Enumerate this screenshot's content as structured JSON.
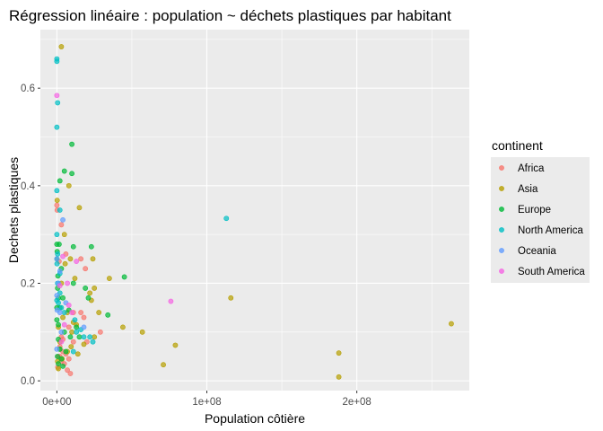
{
  "chart_data": {
    "type": "scatter",
    "title": "Régression linéaire : population ~ déchets plastiques par habitant",
    "xlabel": "Population côtière",
    "ylabel": "Dechets plastiques",
    "xlim": [
      -11000000,
      275000000
    ],
    "ylim": [
      -0.02,
      0.72
    ],
    "x_ticks": [
      0,
      100000000,
      200000000
    ],
    "x_tick_labels": [
      "0e+00",
      "1e+08",
      "2e+08"
    ],
    "y_ticks": [
      0.0,
      0.2,
      0.4,
      0.6
    ],
    "y_tick_labels": [
      "0.0",
      "0.2",
      "0.4",
      "0.6"
    ],
    "grid": true,
    "legend": {
      "title": "continent",
      "position": "right"
    },
    "series": [
      {
        "name": "Africa",
        "color": "#F8766D",
        "points": [
          [
            0,
            0.36
          ],
          [
            200000,
            0.35
          ],
          [
            3000000,
            0.32
          ],
          [
            6000000,
            0.26
          ],
          [
            16000000,
            0.25
          ],
          [
            19000000,
            0.23
          ],
          [
            11000000,
            0.14
          ],
          [
            16000000,
            0.14
          ],
          [
            18000000,
            0.13
          ],
          [
            8000000,
            0.11
          ],
          [
            29000000,
            0.1
          ],
          [
            3000000,
            0.09
          ],
          [
            11000000,
            0.08
          ],
          [
            2000000,
            0.07
          ],
          [
            4000000,
            0.06
          ],
          [
            6000000,
            0.055
          ],
          [
            1000000,
            0.05
          ],
          [
            8000000,
            0.045
          ],
          [
            3000000,
            0.04
          ],
          [
            5000000,
            0.035
          ],
          [
            600000,
            0.028
          ],
          [
            7000000,
            0.022
          ],
          [
            9000000,
            0.015
          ],
          [
            2000000,
            0.05
          ],
          [
            4000000,
            0.085
          ],
          [
            20000000,
            0.08
          ],
          [
            1500000,
            0.245
          ]
        ]
      },
      {
        "name": "Asia",
        "color": "#B79F00",
        "points": [
          [
            3000000,
            0.685
          ],
          [
            8000000,
            0.4
          ],
          [
            15000000,
            0.355
          ],
          [
            200000,
            0.37
          ],
          [
            5000000,
            0.3
          ],
          [
            9000000,
            0.25
          ],
          [
            24000000,
            0.25
          ],
          [
            35000000,
            0.21
          ],
          [
            12000000,
            0.21
          ],
          [
            25000000,
            0.19
          ],
          [
            22000000,
            0.18
          ],
          [
            23000000,
            0.165
          ],
          [
            3000000,
            0.2
          ],
          [
            7000000,
            0.14
          ],
          [
            11000000,
            0.12
          ],
          [
            13000000,
            0.115
          ],
          [
            28000000,
            0.14
          ],
          [
            44000000,
            0.11
          ],
          [
            57000000,
            0.1
          ],
          [
            79000000,
            0.073
          ],
          [
            71000000,
            0.033
          ],
          [
            116000000,
            0.17
          ],
          [
            188000000,
            0.057
          ],
          [
            188000000,
            0.008
          ],
          [
            263000000,
            0.117
          ],
          [
            18000000,
            0.075
          ],
          [
            25000000,
            0.09
          ],
          [
            10000000,
            0.1
          ],
          [
            2000000,
            0.065
          ],
          [
            7000000,
            0.06
          ],
          [
            1000000,
            0.11
          ],
          [
            4000000,
            0.13
          ],
          [
            2000000,
            0.08
          ],
          [
            500000,
            0.04
          ],
          [
            1000000,
            0.025
          ],
          [
            3500000,
            0.045
          ],
          [
            9500000,
            0.07
          ],
          [
            14000000,
            0.055
          ],
          [
            5500000,
            0.24
          ]
        ]
      },
      {
        "name": "Europe",
        "color": "#00BA38",
        "points": [
          [
            10000000,
            0.485
          ],
          [
            5000000,
            0.43
          ],
          [
            10000000,
            0.425
          ],
          [
            2000000,
            0.41
          ],
          [
            0,
            0.28
          ],
          [
            1500000,
            0.28
          ],
          [
            11000000,
            0.275
          ],
          [
            23000000,
            0.275
          ],
          [
            0,
            0.25
          ],
          [
            3000000,
            0.23
          ],
          [
            700000,
            0.215
          ],
          [
            45000000,
            0.213
          ],
          [
            500000,
            0.19
          ],
          [
            1000000,
            0.17
          ],
          [
            11000000,
            0.2
          ],
          [
            19000000,
            0.19
          ],
          [
            21000000,
            0.17
          ],
          [
            4000000,
            0.17
          ],
          [
            0,
            0.15
          ],
          [
            2000000,
            0.15
          ],
          [
            8000000,
            0.145
          ],
          [
            34000000,
            0.135
          ],
          [
            0,
            0.125
          ],
          [
            1000000,
            0.115
          ],
          [
            13000000,
            0.11
          ],
          [
            5000000,
            0.1
          ],
          [
            1000000,
            0.085
          ],
          [
            9000000,
            0.09
          ],
          [
            15000000,
            0.09
          ],
          [
            2000000,
            0.065
          ],
          [
            6000000,
            0.06
          ],
          [
            400000,
            0.05
          ],
          [
            3000000,
            0.045
          ],
          [
            1000000,
            0.035
          ],
          [
            4000000,
            0.03
          ],
          [
            200000,
            0.265
          ]
        ]
      },
      {
        "name": "North America",
        "color": "#00BFC4",
        "points": [
          [
            0,
            0.66
          ],
          [
            0,
            0.655
          ],
          [
            500000,
            0.57
          ],
          [
            0,
            0.52
          ],
          [
            0,
            0.39
          ],
          [
            2000000,
            0.35
          ],
          [
            0,
            0.3
          ],
          [
            500000,
            0.26
          ],
          [
            100000,
            0.24
          ],
          [
            2000000,
            0.22
          ],
          [
            500000,
            0.2
          ],
          [
            2000000,
            0.18
          ],
          [
            0,
            0.165
          ],
          [
            1000000,
            0.16
          ],
          [
            3000000,
            0.15
          ],
          [
            5000000,
            0.14
          ],
          [
            12000000,
            0.125
          ],
          [
            16000000,
            0.105
          ],
          [
            18000000,
            0.09
          ],
          [
            13000000,
            0.1
          ],
          [
            22000000,
            0.09
          ],
          [
            24000000,
            0.08
          ],
          [
            11000000,
            0.06
          ],
          [
            113000000,
            0.333
          ]
        ]
      },
      {
        "name": "Oceania",
        "color": "#619CFF",
        "points": [
          [
            4000000,
            0.33
          ],
          [
            0,
            0.25
          ],
          [
            2000000,
            0.225
          ],
          [
            1000000,
            0.2
          ],
          [
            0,
            0.175
          ],
          [
            18000000,
            0.11
          ],
          [
            3000000,
            0.1
          ],
          [
            0,
            0.065
          ],
          [
            200000,
            0.145
          ],
          [
            6000000,
            0.16
          ],
          [
            2000000,
            0.14
          ]
        ]
      },
      {
        "name": "South America",
        "color": "#F564E3",
        "points": [
          [
            0,
            0.585
          ],
          [
            4000000,
            0.255
          ],
          [
            13000000,
            0.245
          ],
          [
            76000000,
            0.163
          ],
          [
            7000000,
            0.2
          ],
          [
            2000000,
            0.195
          ],
          [
            10000000,
            0.14
          ],
          [
            5000000,
            0.115
          ],
          [
            3000000,
            0.08
          ],
          [
            8000000,
            0.155
          ]
        ]
      }
    ]
  }
}
